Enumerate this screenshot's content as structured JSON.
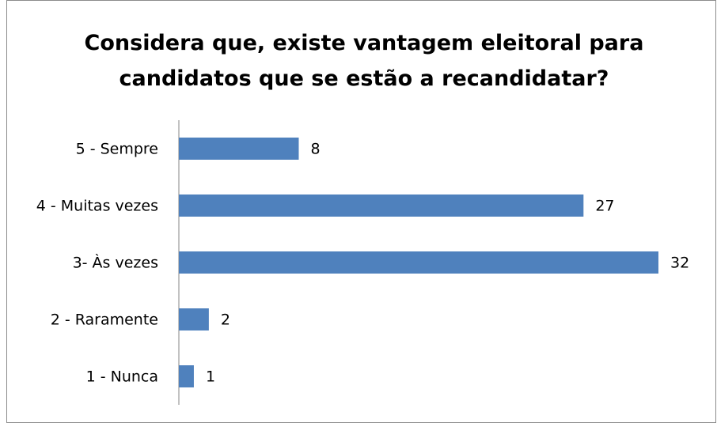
{
  "chart_data": {
    "type": "bar",
    "orientation": "horizontal",
    "title": "Considera que, existe vantagem eleitoral para candidatos que se estão a recandidatar?",
    "categories": [
      "5 - Sempre",
      "4 - Muitas vezes",
      "3- Às vezes",
      "2 - Raramente",
      "1 - Nunca"
    ],
    "values": [
      8,
      27,
      32,
      2,
      1
    ],
    "color": "#4f81bd",
    "xlim": [
      0,
      32
    ]
  }
}
